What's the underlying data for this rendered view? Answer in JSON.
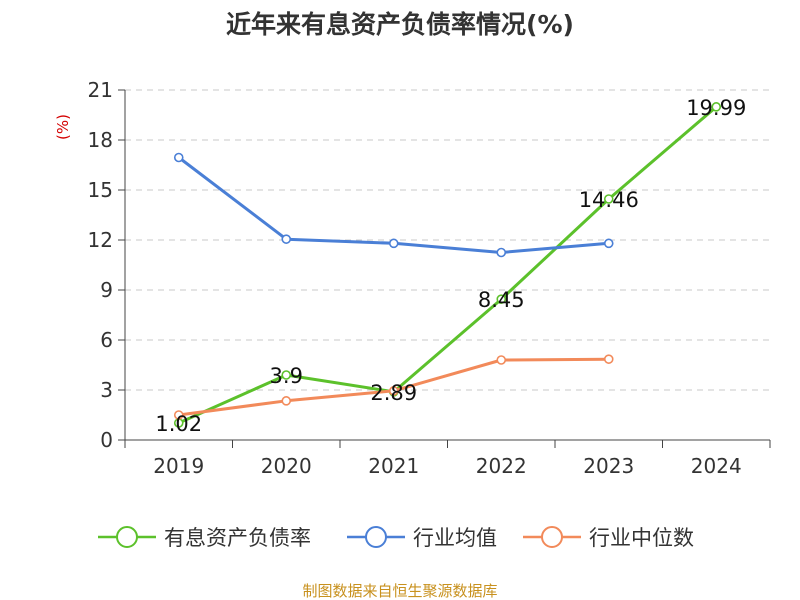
{
  "chart_data": {
    "type": "line",
    "title": "近年来有息资产负债率情况(%)",
    "ylabel": "(%)",
    "xlabel": "",
    "categories": [
      "2019",
      "2020",
      "2021",
      "2022",
      "2023",
      "2024"
    ],
    "ylim": [
      0,
      21
    ],
    "yticks": [
      0,
      3,
      6,
      9,
      12,
      15,
      18,
      21
    ],
    "grid": true,
    "legend_position": "bottom",
    "series": [
      {
        "name": "有息资产负债率",
        "color": "#5cc12b",
        "values": [
          1.02,
          3.9,
          2.89,
          8.45,
          14.46,
          19.99
        ],
        "labels": [
          "1.02",
          "3.9",
          "2.89",
          "8.45",
          "14.46",
          "19.99"
        ]
      },
      {
        "name": "行业均值",
        "color": "#4a7fd6",
        "values": [
          16.95,
          12.05,
          11.8,
          11.25,
          11.8,
          null
        ]
      },
      {
        "name": "行业中位数",
        "color": "#f28a5a",
        "values": [
          1.5,
          2.35,
          2.95,
          4.8,
          4.85,
          null
        ]
      }
    ]
  },
  "source_text": "制图数据来自恒生聚源数据库"
}
